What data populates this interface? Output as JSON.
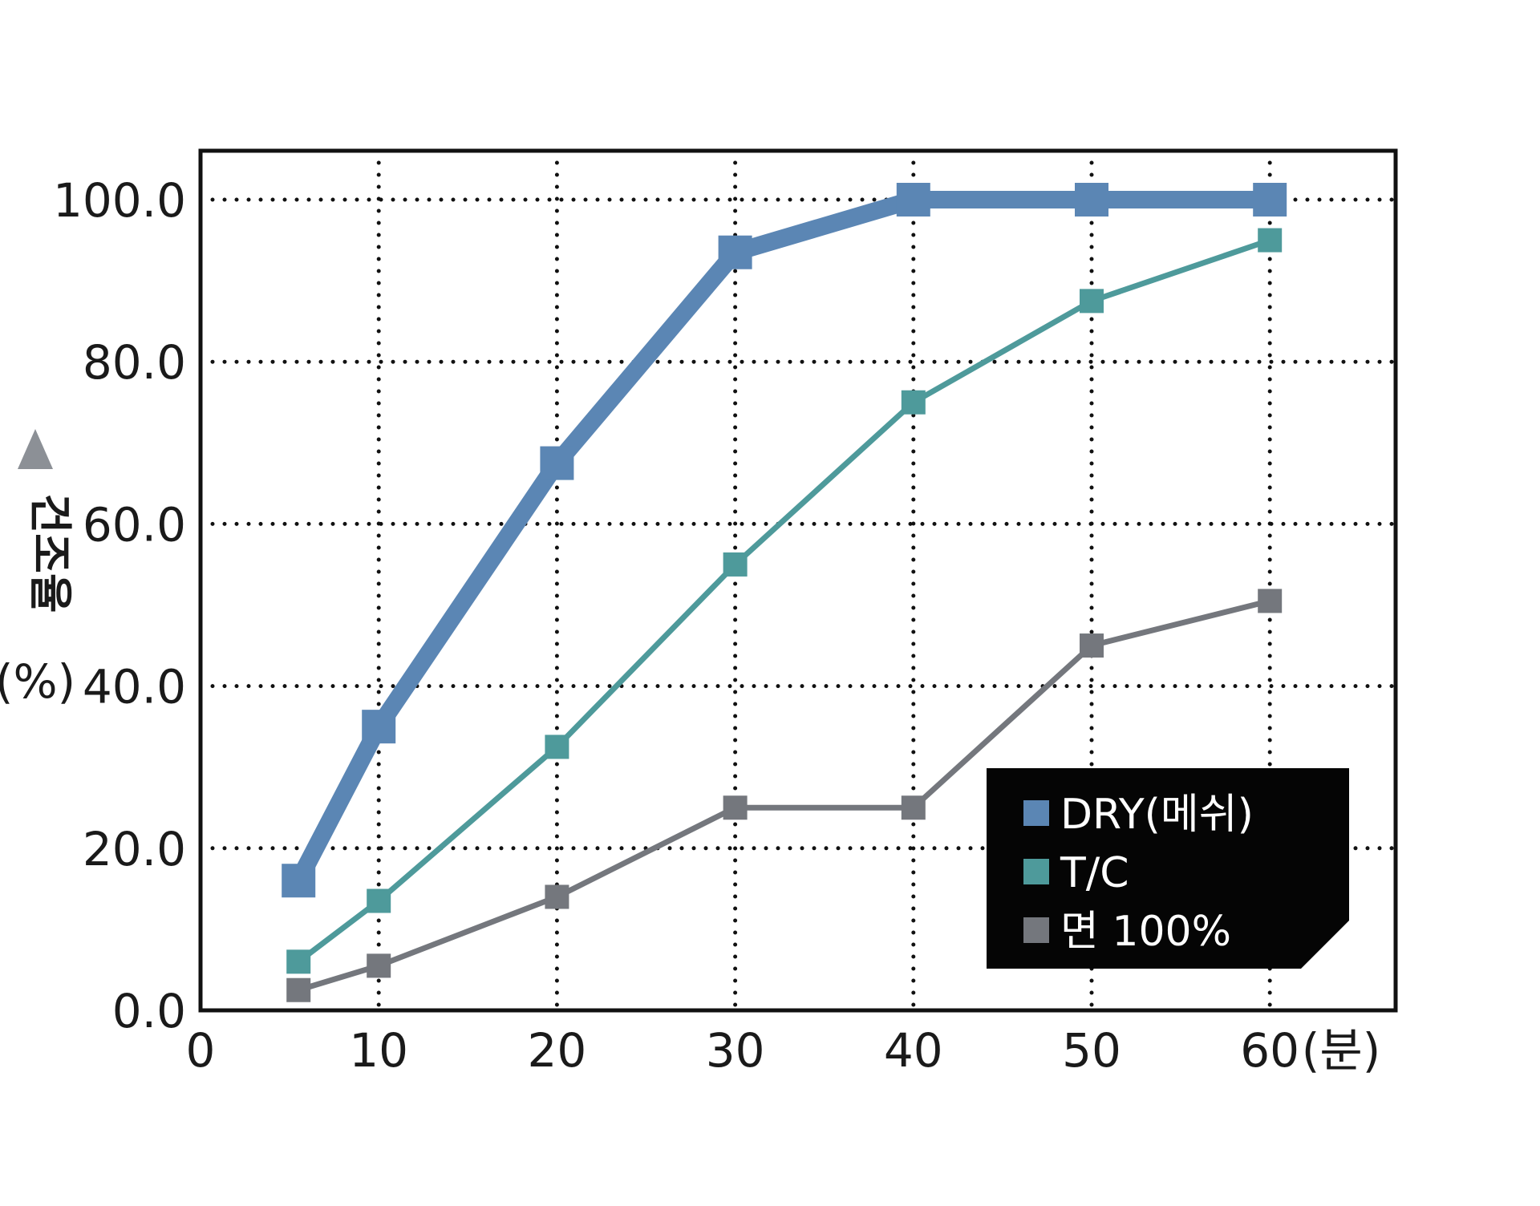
{
  "chart_data": {
    "type": "line",
    "title": "",
    "xlabel": "(분)",
    "ylabel": "건조율",
    "ylabel_unit": "(%)",
    "ylabel_marker": "triangle-up-icon",
    "xlim": [
      0,
      67
    ],
    "ylim": [
      0,
      106
    ],
    "x_ticks": [
      0,
      10,
      20,
      30,
      40,
      50,
      60
    ],
    "x_tick_labels": [
      "0",
      "10",
      "20",
      "30",
      "40",
      "50",
      "60"
    ],
    "y_ticks": [
      0,
      20,
      40,
      60,
      80,
      100
    ],
    "y_tick_labels": [
      "0.0",
      "20.0",
      "40.0",
      "60.0",
      "80.0",
      "100.0"
    ],
    "grid": "dotted",
    "legend_position": "bottom-right",
    "series": [
      {
        "name": "DRY(메쉬)",
        "color": "#5b86b4",
        "x": [
          5.5,
          10,
          20,
          30,
          40,
          50,
          60
        ],
        "y": [
          16,
          35,
          67.5,
          93.5,
          100,
          100,
          100
        ]
      },
      {
        "name": "T/C",
        "color": "#4e9a9b",
        "x": [
          5.5,
          10,
          20,
          30,
          40,
          50,
          60
        ],
        "y": [
          6,
          13.5,
          32.5,
          55,
          75,
          87.5,
          95
        ]
      },
      {
        "name": "면 100%",
        "color": "#74777d",
        "x": [
          5.5,
          10,
          20,
          30,
          40,
          50,
          60
        ],
        "y": [
          2.5,
          5.5,
          14,
          25,
          25,
          45,
          50.5
        ]
      }
    ]
  }
}
